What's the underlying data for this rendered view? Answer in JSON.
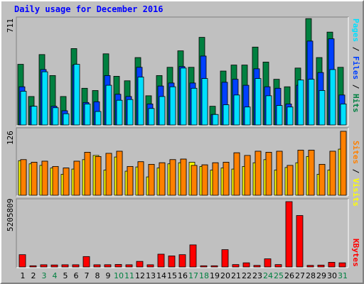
{
  "title": "Daily usage for December 2016",
  "colors": {
    "hits": "#008040",
    "files": "#0040ff",
    "pages": "#00e0ff",
    "visits": "#ffff00",
    "sites": "#ff8000",
    "kbytes": "#ff0000",
    "weekend_day": "#008040",
    "weekday": "#000000",
    "title": "#0000ff",
    "panel_bg": "#c0c0c0"
  },
  "chart_data": [
    {
      "type": "bar",
      "panel": "hits-files-pages",
      "ymax_label": "711",
      "ylim": [
        0,
        711
      ],
      "legend": {
        "pages": "Pages",
        "files": "Files",
        "hits": "Hits",
        "sep": " / "
      },
      "categories": [
        "1",
        "2",
        "3",
        "4",
        "5",
        "6",
        "7",
        "8",
        "9",
        "10",
        "11",
        "12",
        "13",
        "14",
        "15",
        "16",
        "17",
        "18",
        "19",
        "20",
        "21",
        "22",
        "23",
        "24",
        "25",
        "26",
        "27",
        "28",
        "29",
        "30",
        "31"
      ],
      "series": [
        {
          "name": "Hits",
          "values": [
            405,
            190,
            470,
            330,
            190,
            510,
            245,
            230,
            475,
            325,
            295,
            450,
            195,
            330,
            385,
            495,
            385,
            585,
            125,
            360,
            400,
            400,
            520,
            420,
            305,
            255,
            380,
            710,
            450,
            620,
            385
          ]
        },
        {
          "name": "Files",
          "values": [
            255,
            125,
            370,
            125,
            95,
            400,
            150,
            155,
            330,
            205,
            190,
            385,
            140,
            260,
            280,
            390,
            280,
            460,
            70,
            285,
            305,
            265,
            375,
            255,
            245,
            140,
            265,
            560,
            350,
            575,
            200
          ]
        },
        {
          "name": "Pages",
          "values": [
            225,
            125,
            355,
            115,
            75,
            405,
            140,
            90,
            265,
            165,
            170,
            320,
            110,
            190,
            255,
            380,
            245,
            310,
            70,
            135,
            200,
            120,
            310,
            195,
            130,
            120,
            300,
            305,
            230,
            370,
            140
          ]
        }
      ]
    },
    {
      "type": "bar",
      "panel": "visits-sites",
      "ymax_label": "126",
      "ylim": [
        0,
        126
      ],
      "legend": {
        "sites": "Sites",
        "visits": "Visits",
        "sep": " / "
      },
      "categories": [
        "1",
        "2",
        "3",
        "4",
        "5",
        "6",
        "7",
        "8",
        "9",
        "10",
        "11",
        "12",
        "13",
        "14",
        "15",
        "16",
        "17",
        "18",
        "19",
        "20",
        "21",
        "22",
        "23",
        "24",
        "25",
        "26",
        "27",
        "28",
        "29",
        "30",
        "31"
      ],
      "series": [
        {
          "name": "Visits",
          "values": [
            66,
            60,
            57,
            52,
            40,
            50,
            68,
            76,
            48,
            73,
            46,
            54,
            35,
            52,
            60,
            62,
            63,
            55,
            48,
            52,
            50,
            55,
            62,
            68,
            48,
            53,
            62,
            74,
            40,
            48,
            88
          ]
        },
        {
          "name": "Sites",
          "values": [
            68,
            63,
            65,
            55,
            52,
            65,
            82,
            74,
            80,
            84,
            55,
            64,
            59,
            62,
            68,
            69,
            57,
            58,
            62,
            63,
            81,
            76,
            84,
            82,
            84,
            57,
            86,
            86,
            59,
            84,
            122
          ]
        }
      ]
    },
    {
      "type": "bar",
      "panel": "kbytes",
      "ymax_label": "5205809",
      "ylim": [
        0,
        5205809
      ],
      "legend": {
        "kbytes": "KBytes"
      },
      "categories": [
        "1",
        "2",
        "3",
        "4",
        "5",
        "6",
        "7",
        "8",
        "9",
        "10",
        "11",
        "12",
        "13",
        "14",
        "15",
        "16",
        "17",
        "18",
        "19",
        "20",
        "21",
        "22",
        "23",
        "24",
        "25",
        "26",
        "27",
        "28",
        "29",
        "30",
        "31"
      ],
      "series": [
        {
          "name": "KBytes",
          "values": [
            980000,
            95000,
            175000,
            160000,
            175000,
            175000,
            830000,
            175000,
            180000,
            200000,
            175000,
            445000,
            175000,
            1020000,
            880000,
            980000,
            1760000,
            95000,
            95000,
            1380000,
            190000,
            330000,
            125000,
            650000,
            190000,
            5205809,
            4100000,
            125000,
            150000,
            370000,
            330000
          ]
        }
      ]
    }
  ],
  "days": [
    {
      "label": "1",
      "weekend": false
    },
    {
      "label": "2",
      "weekend": false
    },
    {
      "label": "3",
      "weekend": true
    },
    {
      "label": "4",
      "weekend": true
    },
    {
      "label": "5",
      "weekend": false
    },
    {
      "label": "6",
      "weekend": false
    },
    {
      "label": "7",
      "weekend": false
    },
    {
      "label": "8",
      "weekend": false
    },
    {
      "label": "9",
      "weekend": false
    },
    {
      "label": "10",
      "weekend": true
    },
    {
      "label": "11",
      "weekend": true
    },
    {
      "label": "12",
      "weekend": false
    },
    {
      "label": "13",
      "weekend": false
    },
    {
      "label": "14",
      "weekend": false
    },
    {
      "label": "15",
      "weekend": false
    },
    {
      "label": "16",
      "weekend": false
    },
    {
      "label": "17",
      "weekend": true
    },
    {
      "label": "18",
      "weekend": true
    },
    {
      "label": "19",
      "weekend": false
    },
    {
      "label": "20",
      "weekend": false
    },
    {
      "label": "21",
      "weekend": false
    },
    {
      "label": "22",
      "weekend": false
    },
    {
      "label": "23",
      "weekend": false
    },
    {
      "label": "24",
      "weekend": true
    },
    {
      "label": "25",
      "weekend": true
    },
    {
      "label": "26",
      "weekend": false
    },
    {
      "label": "27",
      "weekend": false
    },
    {
      "label": "28",
      "weekend": false
    },
    {
      "label": "29",
      "weekend": false
    },
    {
      "label": "30",
      "weekend": false
    },
    {
      "label": "31",
      "weekend": true
    }
  ]
}
